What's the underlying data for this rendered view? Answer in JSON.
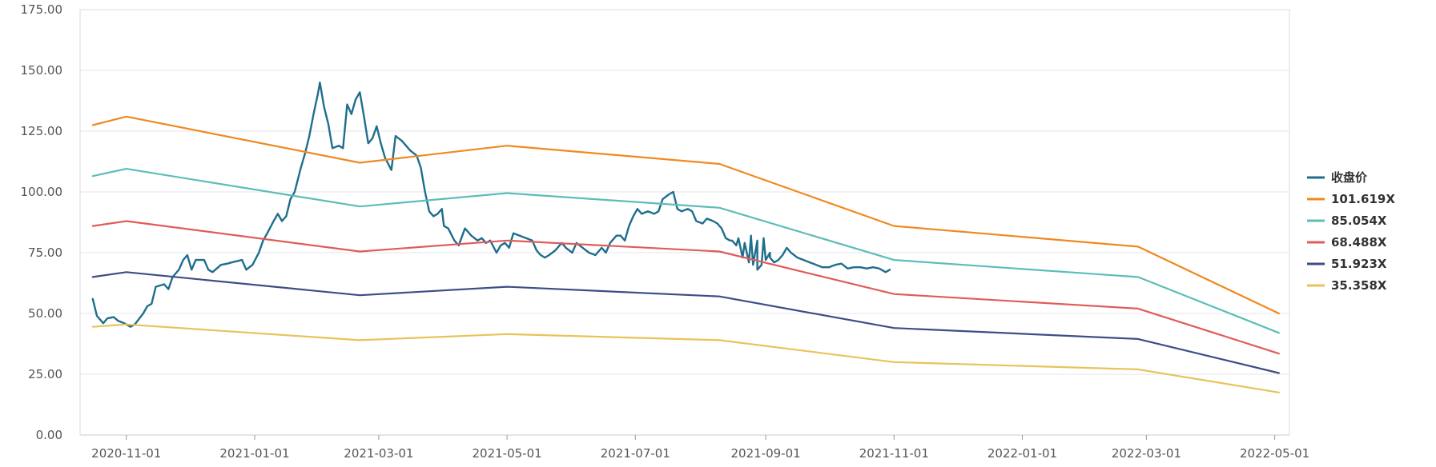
{
  "chart_data": {
    "type": "line",
    "title": "",
    "xlabel": "",
    "ylabel": "",
    "x_range": [
      "2020-10-10",
      "2022-05-08"
    ],
    "ylim": [
      0,
      175
    ],
    "y_ticks": [
      "0.00",
      "25.00",
      "50.00",
      "75.00",
      "100.00",
      "125.00",
      "150.00",
      "175.00"
    ],
    "y_tick_values": [
      0,
      25,
      50,
      75,
      100,
      125,
      150,
      175
    ],
    "x_ticks": [
      "2020-11-01",
      "2021-01-01",
      "2021-03-01",
      "2021-05-01",
      "2021-07-01",
      "2021-09-01",
      "2021-11-01",
      "2022-01-01",
      "2022-03-01",
      "2022-05-01"
    ],
    "grid": "horizontal",
    "legend_position": "right",
    "series": [
      {
        "name": "收盘价",
        "color": "#1f6e8c",
        "points": [
          [
            "2020-10-16",
            56
          ],
          [
            "2020-10-18",
            49
          ],
          [
            "2020-10-21",
            46
          ],
          [
            "2020-10-23",
            48
          ],
          [
            "2020-10-26",
            48.5
          ],
          [
            "2020-10-28",
            47
          ],
          [
            "2020-10-31",
            46
          ],
          [
            "2020-11-03",
            44.5
          ],
          [
            "2020-11-05",
            45.5
          ],
          [
            "2020-11-09",
            50
          ],
          [
            "2020-11-11",
            53
          ],
          [
            "2020-11-13",
            54
          ],
          [
            "2020-11-15",
            61
          ],
          [
            "2020-11-19",
            62
          ],
          [
            "2020-11-21",
            60
          ],
          [
            "2020-11-23",
            65
          ],
          [
            "2020-11-26",
            68
          ],
          [
            "2020-11-28",
            72
          ],
          [
            "2020-11-30",
            74
          ],
          [
            "2020-12-02",
            68
          ],
          [
            "2020-12-04",
            72
          ],
          [
            "2020-12-08",
            72
          ],
          [
            "2020-12-10",
            68
          ],
          [
            "2020-12-12",
            67
          ],
          [
            "2020-12-16",
            70
          ],
          [
            "2020-12-19",
            70.5
          ],
          [
            "2020-12-21",
            71
          ],
          [
            "2020-12-26",
            72
          ],
          [
            "2020-12-28",
            68
          ],
          [
            "2020-12-31",
            70
          ],
          [
            "2021-01-03",
            75
          ],
          [
            "2021-01-05",
            80
          ],
          [
            "2021-01-07",
            83
          ],
          [
            "2021-01-10",
            88
          ],
          [
            "2021-01-12",
            91
          ],
          [
            "2021-01-14",
            88
          ],
          [
            "2021-01-16",
            90
          ],
          [
            "2021-01-18",
            97
          ],
          [
            "2021-01-20",
            100
          ],
          [
            "2021-01-23",
            110
          ],
          [
            "2021-01-25",
            116
          ],
          [
            "2021-01-27",
            123
          ],
          [
            "2021-01-29",
            132
          ],
          [
            "2021-01-31",
            140
          ],
          [
            "2021-02-01",
            145
          ],
          [
            "2021-02-03",
            135
          ],
          [
            "2021-02-05",
            128
          ],
          [
            "2021-02-07",
            118
          ],
          [
            "2021-02-10",
            119
          ],
          [
            "2021-02-12",
            118
          ],
          [
            "2021-02-14",
            136
          ],
          [
            "2021-02-16",
            132
          ],
          [
            "2021-02-18",
            138
          ],
          [
            "2021-02-20",
            141
          ],
          [
            "2021-02-22",
            131
          ],
          [
            "2021-02-24",
            120
          ],
          [
            "2021-02-26",
            122
          ],
          [
            "2021-02-28",
            127
          ],
          [
            "2021-03-02",
            120
          ],
          [
            "2021-03-04",
            114
          ],
          [
            "2021-03-07",
            109
          ],
          [
            "2021-03-09",
            123
          ],
          [
            "2021-03-12",
            121
          ],
          [
            "2021-03-16",
            117
          ],
          [
            "2021-03-19",
            115
          ],
          [
            "2021-03-21",
            110
          ],
          [
            "2021-03-23",
            100
          ],
          [
            "2021-03-25",
            92
          ],
          [
            "2021-03-27",
            90
          ],
          [
            "2021-03-29",
            91
          ],
          [
            "2021-03-31",
            93
          ],
          [
            "2021-04-01",
            86
          ],
          [
            "2021-04-03",
            85
          ],
          [
            "2021-04-06",
            80
          ],
          [
            "2021-04-08",
            78
          ],
          [
            "2021-04-11",
            85
          ],
          [
            "2021-04-14",
            82
          ],
          [
            "2021-04-17",
            80
          ],
          [
            "2021-04-19",
            81
          ],
          [
            "2021-04-21",
            79
          ],
          [
            "2021-04-23",
            80
          ],
          [
            "2021-04-26",
            75
          ],
          [
            "2021-04-28",
            78
          ],
          [
            "2021-04-30",
            79
          ],
          [
            "2021-05-02",
            77
          ],
          [
            "2021-05-04",
            83
          ],
          [
            "2021-05-07",
            82
          ],
          [
            "2021-05-10",
            81
          ],
          [
            "2021-05-13",
            80
          ],
          [
            "2021-05-15",
            76
          ],
          [
            "2021-05-17",
            74
          ],
          [
            "2021-05-19",
            73
          ],
          [
            "2021-05-21",
            74
          ],
          [
            "2021-05-24",
            76
          ],
          [
            "2021-05-27",
            79
          ],
          [
            "2021-05-29",
            77
          ],
          [
            "2021-06-01",
            75
          ],
          [
            "2021-06-03",
            79
          ],
          [
            "2021-06-06",
            77
          ],
          [
            "2021-06-09",
            75
          ],
          [
            "2021-06-12",
            74
          ],
          [
            "2021-06-15",
            77
          ],
          [
            "2021-06-17",
            75
          ],
          [
            "2021-06-19",
            79
          ],
          [
            "2021-06-22",
            82
          ],
          [
            "2021-06-24",
            82
          ],
          [
            "2021-06-26",
            80
          ],
          [
            "2021-06-28",
            86
          ],
          [
            "2021-06-30",
            90
          ],
          [
            "2021-07-02",
            93
          ],
          [
            "2021-07-04",
            91
          ],
          [
            "2021-07-07",
            92
          ],
          [
            "2021-07-10",
            91
          ],
          [
            "2021-07-12",
            92
          ],
          [
            "2021-07-14",
            97
          ],
          [
            "2021-07-17",
            99
          ],
          [
            "2021-07-19",
            100
          ],
          [
            "2021-07-21",
            93
          ],
          [
            "2021-07-23",
            92
          ],
          [
            "2021-07-26",
            93
          ],
          [
            "2021-07-28",
            92
          ],
          [
            "2021-07-30",
            88
          ],
          [
            "2021-08-02",
            87
          ],
          [
            "2021-08-04",
            89
          ],
          [
            "2021-08-07",
            88
          ],
          [
            "2021-08-09",
            87
          ],
          [
            "2021-08-11",
            85
          ],
          [
            "2021-08-13",
            81
          ],
          [
            "2021-08-16",
            80
          ],
          [
            "2021-08-19",
            81
          ],
          [
            "2021-08-22",
            79
          ],
          [
            "2021-08-25",
            82
          ],
          [
            "2021-08-28",
            80
          ],
          [
            "2021-08-31",
            81
          ],
          [
            "2021-09-03",
            75
          ],
          [
            "2021-08-15",
            80
          ],
          [
            "2021-08-18",
            78
          ],
          [
            "2021-08-21",
            73
          ],
          [
            "2021-08-24",
            71
          ],
          [
            "2021-08-26",
            70
          ],
          [
            "2021-08-28",
            68
          ],
          [
            "2021-08-30",
            70
          ],
          [
            "2021-09-01",
            72
          ],
          [
            "2021-09-03",
            73
          ],
          [
            "2021-09-05",
            71
          ],
          [
            "2021-09-07",
            72
          ],
          [
            "2021-09-09",
            74
          ],
          [
            "2021-09-11",
            77
          ],
          [
            "2021-09-13",
            75
          ],
          [
            "2021-09-16",
            73
          ],
          [
            "2021-09-19",
            72
          ],
          [
            "2021-09-22",
            71
          ],
          [
            "2021-09-25",
            70
          ],
          [
            "2021-09-28",
            69
          ],
          [
            "2021-10-01",
            69
          ],
          [
            "2021-10-04",
            70
          ],
          [
            "2021-10-07",
            70.5
          ],
          [
            "2021-10-10",
            68.5
          ],
          [
            "2021-10-13",
            69
          ],
          [
            "2021-10-16",
            69
          ],
          [
            "2021-10-19",
            68.5
          ],
          [
            "2021-10-22",
            69
          ],
          [
            "2021-10-25",
            68.5
          ],
          [
            "2021-10-28",
            67
          ],
          [
            "2021-10-30",
            68
          ]
        ]
      },
      {
        "name": "101.619X",
        "color": "#f0891f",
        "points": [
          [
            "2020-10-16",
            127.5
          ],
          [
            "2020-11-01",
            131
          ],
          [
            "2021-02-20",
            112
          ],
          [
            "2021-05-01",
            119
          ],
          [
            "2021-08-10",
            111.5
          ],
          [
            "2021-11-01",
            86
          ],
          [
            "2022-02-25",
            77.5
          ],
          [
            "2022-05-03",
            50
          ]
        ]
      },
      {
        "name": "85.054X",
        "color": "#5cbdb9",
        "points": [
          [
            "2020-10-16",
            106.5
          ],
          [
            "2020-11-01",
            109.5
          ],
          [
            "2021-02-20",
            94
          ],
          [
            "2021-05-01",
            99.5
          ],
          [
            "2021-08-10",
            93.5
          ],
          [
            "2021-11-01",
            72
          ],
          [
            "2022-02-25",
            65
          ],
          [
            "2022-05-03",
            42
          ]
        ]
      },
      {
        "name": "68.488X",
        "color": "#e05c5c",
        "points": [
          [
            "2020-10-16",
            86
          ],
          [
            "2020-11-01",
            88
          ],
          [
            "2021-02-20",
            75.5
          ],
          [
            "2021-05-01",
            80
          ],
          [
            "2021-08-10",
            75.5
          ],
          [
            "2021-11-01",
            58
          ],
          [
            "2022-02-25",
            52
          ],
          [
            "2022-05-03",
            33.5
          ]
        ]
      },
      {
        "name": "51.923X",
        "color": "#3d4e86",
        "points": [
          [
            "2020-10-16",
            65
          ],
          [
            "2020-11-01",
            67
          ],
          [
            "2021-02-20",
            57.5
          ],
          [
            "2021-05-01",
            61
          ],
          [
            "2021-08-10",
            57
          ],
          [
            "2021-11-01",
            44
          ],
          [
            "2022-02-25",
            39.5
          ],
          [
            "2022-05-03",
            25.5
          ]
        ]
      },
      {
        "name": "35.358X",
        "color": "#e8c35a",
        "points": [
          [
            "2020-10-16",
            44.5
          ],
          [
            "2020-11-01",
            45.5
          ],
          [
            "2021-02-20",
            39
          ],
          [
            "2021-05-01",
            41.5
          ],
          [
            "2021-08-10",
            39
          ],
          [
            "2021-11-01",
            30
          ],
          [
            "2022-02-25",
            27
          ],
          [
            "2022-05-03",
            17.5
          ]
        ]
      }
    ]
  }
}
